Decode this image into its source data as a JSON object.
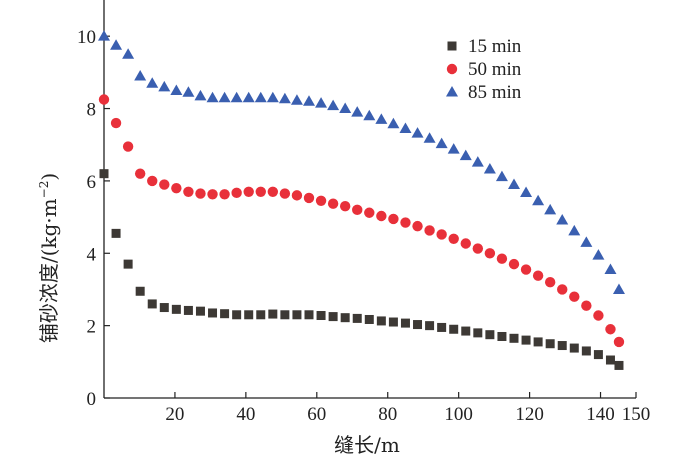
{
  "chart_data": {
    "type": "scatter",
    "title": "",
    "xlabel": "缝长/m",
    "ylabel": "铺砂浓度/(kg·m",
    "ylabel_sup": "−2",
    "ylabel_close": ")",
    "xlim": [
      0,
      150
    ],
    "ylim": [
      0,
      11
    ],
    "xticks": [
      20,
      40,
      60,
      80,
      100,
      120,
      140,
      150
    ],
    "yticks": [
      0,
      2,
      4,
      6,
      8,
      10
    ],
    "grid": false,
    "legend_position": "top-right",
    "colors": {
      "s15": "#3d3935",
      "s50": "#e8303a",
      "s85": "#3a5fb0",
      "axis": "#222222"
    },
    "series": [
      {
        "name": "15 min",
        "marker": "square",
        "x": [
          0,
          3.4,
          6.8,
          10.2,
          13.6,
          17,
          20.4,
          23.8,
          27.2,
          30.6,
          34,
          37.4,
          40.8,
          44.2,
          47.6,
          51,
          54.4,
          57.8,
          61.2,
          64.6,
          68,
          71.4,
          74.8,
          78.2,
          81.6,
          85,
          88.4,
          91.8,
          95.2,
          98.6,
          102,
          105.4,
          108.8,
          112.2,
          115.6,
          119,
          122.4,
          125.8,
          129.2,
          132.6,
          136,
          139.4,
          142.8,
          145.2
        ],
        "y": [
          6.2,
          4.55,
          3.7,
          2.95,
          2.6,
          2.5,
          2.45,
          2.42,
          2.4,
          2.35,
          2.33,
          2.3,
          2.3,
          2.3,
          2.32,
          2.3,
          2.3,
          2.3,
          2.28,
          2.25,
          2.22,
          2.2,
          2.17,
          2.13,
          2.1,
          2.07,
          2.03,
          2.0,
          1.95,
          1.9,
          1.85,
          1.8,
          1.75,
          1.7,
          1.65,
          1.6,
          1.55,
          1.5,
          1.45,
          1.38,
          1.3,
          1.2,
          1.05,
          0.9
        ]
      },
      {
        "name": "50 min",
        "marker": "circle",
        "x": [
          0,
          3.4,
          6.8,
          10.2,
          13.6,
          17,
          20.4,
          23.8,
          27.2,
          30.6,
          34,
          37.4,
          40.8,
          44.2,
          47.6,
          51,
          54.4,
          57.8,
          61.2,
          64.6,
          68,
          71.4,
          74.8,
          78.2,
          81.6,
          85,
          88.4,
          91.8,
          95.2,
          98.6,
          102,
          105.4,
          108.8,
          112.2,
          115.6,
          119,
          122.4,
          125.8,
          129.2,
          132.6,
          136,
          139.4,
          142.8,
          145.2
        ],
        "y": [
          8.25,
          7.6,
          6.95,
          6.2,
          6.0,
          5.9,
          5.8,
          5.7,
          5.65,
          5.63,
          5.63,
          5.67,
          5.7,
          5.7,
          5.7,
          5.65,
          5.6,
          5.53,
          5.45,
          5.37,
          5.3,
          5.2,
          5.12,
          5.03,
          4.95,
          4.85,
          4.75,
          4.63,
          4.52,
          4.4,
          4.27,
          4.13,
          4.0,
          3.85,
          3.7,
          3.55,
          3.38,
          3.2,
          3.0,
          2.8,
          2.55,
          2.28,
          1.9,
          1.55
        ]
      },
      {
        "name": "85 min",
        "marker": "triangle",
        "x": [
          0,
          3.4,
          6.8,
          10.2,
          13.6,
          17,
          20.4,
          23.8,
          27.2,
          30.6,
          34,
          37.4,
          40.8,
          44.2,
          47.6,
          51,
          54.4,
          57.8,
          61.2,
          64.6,
          68,
          71.4,
          74.8,
          78.2,
          81.6,
          85,
          88.4,
          91.8,
          95.2,
          98.6,
          102,
          105.4,
          108.8,
          112.2,
          115.6,
          119,
          122.4,
          125.8,
          129.2,
          132.6,
          136,
          139.4,
          142.8,
          145.2
        ],
        "y": [
          10.0,
          9.75,
          9.5,
          8.9,
          8.7,
          8.6,
          8.5,
          8.45,
          8.35,
          8.3,
          8.3,
          8.3,
          8.3,
          8.3,
          8.3,
          8.27,
          8.23,
          8.2,
          8.15,
          8.08,
          8.0,
          7.9,
          7.8,
          7.7,
          7.58,
          7.45,
          7.32,
          7.18,
          7.03,
          6.88,
          6.7,
          6.52,
          6.33,
          6.12,
          5.9,
          5.68,
          5.45,
          5.2,
          4.92,
          4.62,
          4.3,
          3.95,
          3.55,
          3.0
        ]
      }
    ]
  }
}
